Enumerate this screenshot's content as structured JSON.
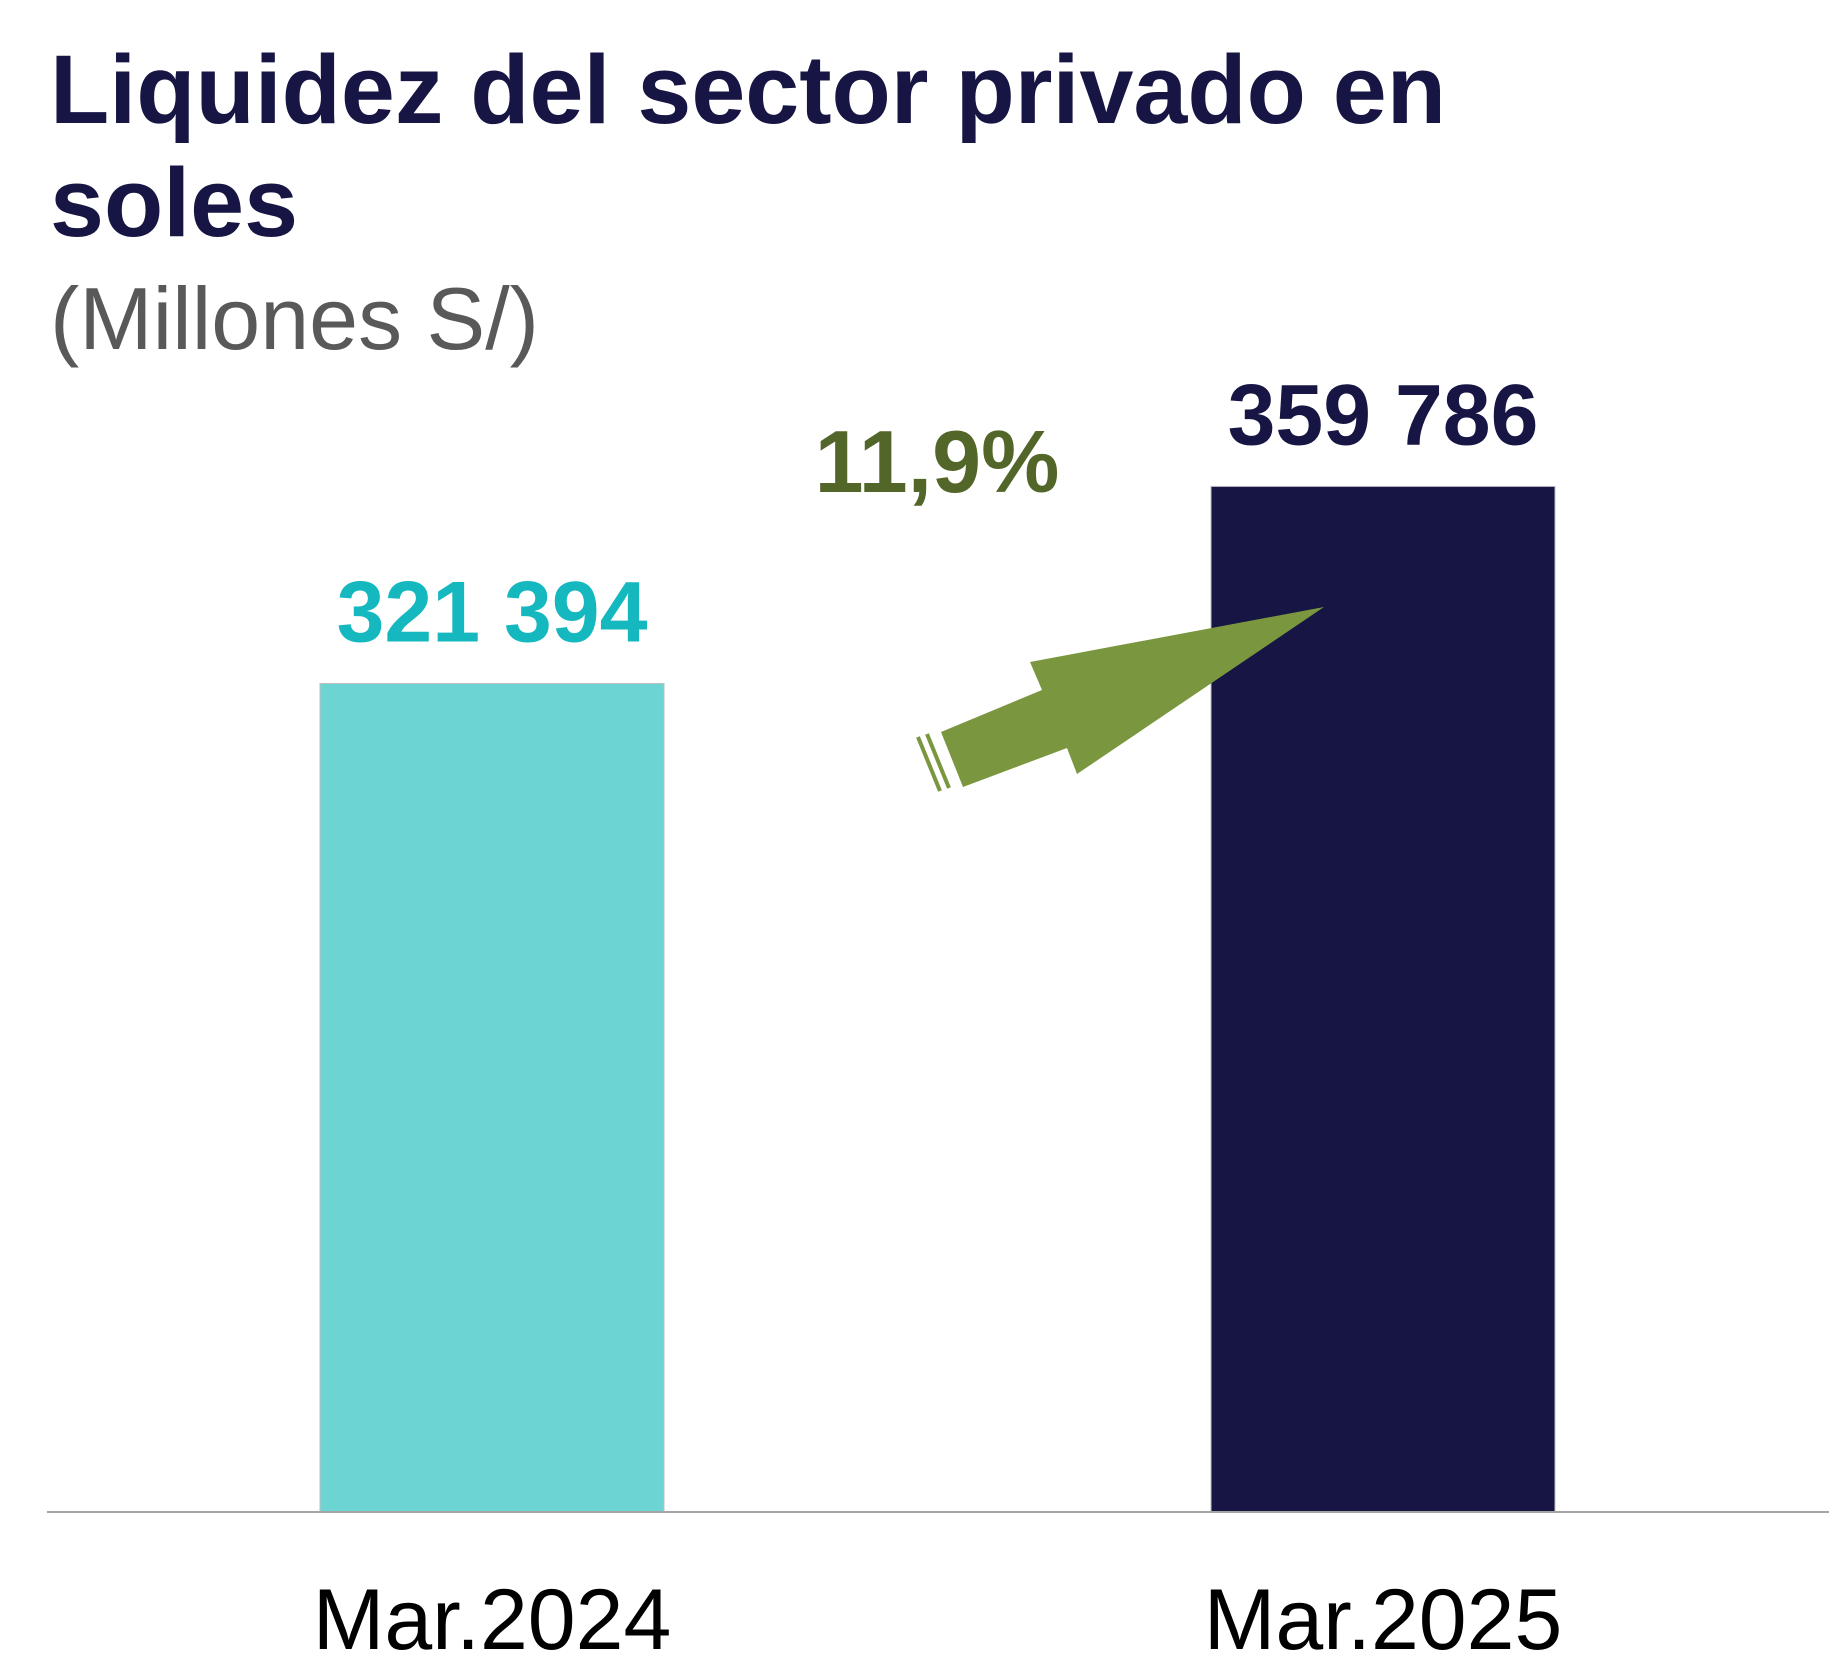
{
  "chart_data": {
    "type": "bar",
    "title": "Liquidez del sector privado en soles",
    "title_lines": [
      "Liquidez del sector privado en",
      "soles"
    ],
    "subtitle": "(Millones S/)",
    "categories": [
      "Mar.2024",
      "Mar.2025"
    ],
    "values": [
      321394,
      359786
    ],
    "value_labels": [
      "321 394",
      "359 786"
    ],
    "colors": [
      "#6CD4D2",
      "#161543"
    ],
    "label_colors": [
      "#14B8BE",
      "#161543"
    ],
    "ylim": [
      160000,
      400000
    ],
    "grid": false,
    "annotation": {
      "text": "11,9%",
      "color": "#536629",
      "arrow_color": "#7A963E",
      "arrow": "up-right"
    },
    "xlabel": "",
    "ylabel": ""
  }
}
